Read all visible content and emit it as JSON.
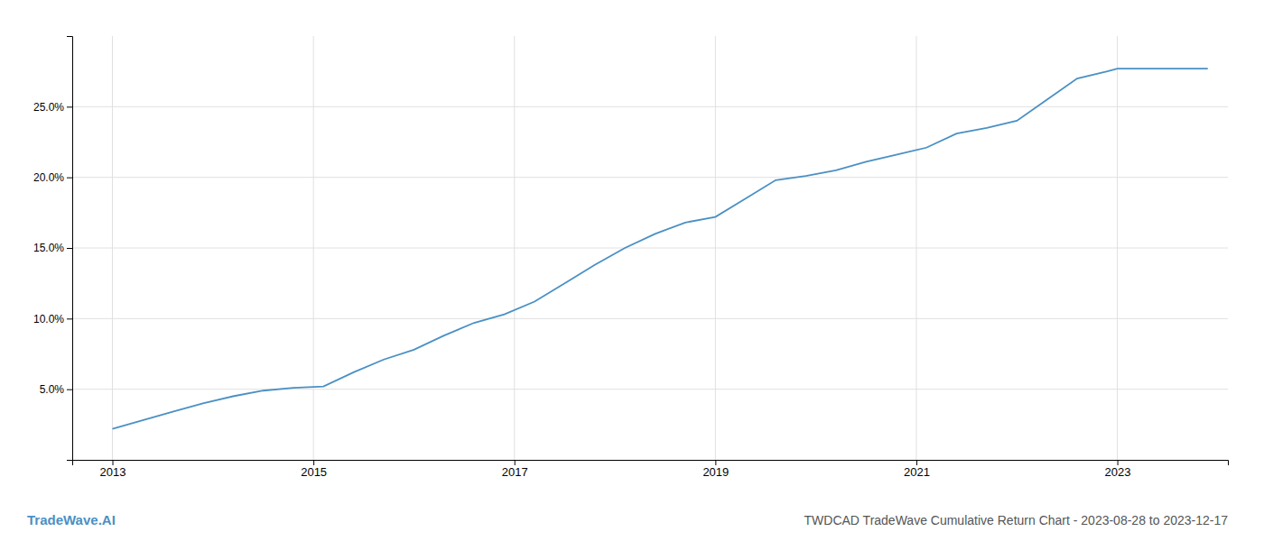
{
  "chart_data": {
    "type": "line",
    "title": "TWDCAD TradeWave Cumulative Return Chart - 2023-08-28 to 2023-12-17",
    "annotations": [
      {
        "text": "TradeWave.AI"
      }
    ],
    "x": [
      2013.0,
      2013.3,
      2013.6,
      2013.9,
      2014.2,
      2014.5,
      2014.8,
      2015.1,
      2015.4,
      2015.7,
      2016.0,
      2016.3,
      2016.6,
      2016.9,
      2017.2,
      2017.5,
      2017.8,
      2018.1,
      2018.4,
      2018.7,
      2019.0,
      2019.3,
      2019.6,
      2019.9,
      2020.2,
      2020.5,
      2020.8,
      2021.1,
      2021.4,
      2021.7,
      2022.0,
      2022.3,
      2022.6,
      2022.9,
      2023.0,
      2023.9
    ],
    "values": [
      2.2,
      2.8,
      3.4,
      4.0,
      4.5,
      4.9,
      5.1,
      5.2,
      6.2,
      7.1,
      7.8,
      8.8,
      9.7,
      10.3,
      11.2,
      12.5,
      13.8,
      15.0,
      16.0,
      16.8,
      17.2,
      18.5,
      19.8,
      20.1,
      20.5,
      21.1,
      21.6,
      22.1,
      23.1,
      23.5,
      24.0,
      25.5,
      27.0,
      27.5,
      27.7,
      27.7
    ],
    "color": "#4a90c4",
    "xlim": [
      2012.6,
      2024.1
    ],
    "xticks": [
      2013,
      2015,
      2017,
      2019,
      2021,
      2023
    ],
    "ylim": [
      0,
      30
    ],
    "yticks": [
      {
        "value": 5.0,
        "label": "5.0%"
      },
      {
        "value": 10.0,
        "label": "10.0%"
      },
      {
        "value": 15.0,
        "label": "15.0%"
      },
      {
        "value": 20.0,
        "label": "20.0%"
      },
      {
        "value": 25.0,
        "label": "25.0%"
      }
    ],
    "grid": true
  }
}
